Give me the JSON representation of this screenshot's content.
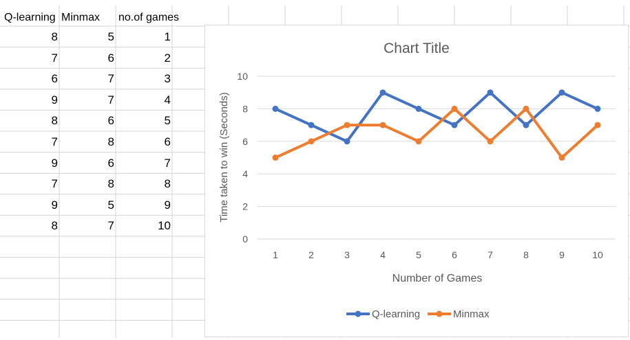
{
  "sheet": {
    "headers": [
      "Q-learning",
      "Minmax",
      "no.of games"
    ],
    "rows": [
      [
        8,
        5,
        1
      ],
      [
        7,
        6,
        2
      ],
      [
        6,
        7,
        3
      ],
      [
        9,
        7,
        4
      ],
      [
        8,
        6,
        5
      ],
      [
        7,
        8,
        6
      ],
      [
        9,
        6,
        7
      ],
      [
        7,
        8,
        8
      ],
      [
        9,
        5,
        9
      ],
      [
        8,
        7,
        10
      ]
    ]
  },
  "chart_data": {
    "type": "line",
    "title": "Chart Title",
    "xlabel": "Number of Games",
    "ylabel": "Time taken to win (Seconds)",
    "categories": [
      "1",
      "2",
      "3",
      "4",
      "5",
      "6",
      "7",
      "8",
      "9",
      "10"
    ],
    "ylim": [
      0,
      10
    ],
    "yticks": [
      "0",
      "2",
      "4",
      "6",
      "8",
      "10"
    ],
    "grid": true,
    "legend": "bottom",
    "series": [
      {
        "name": "Q-learning",
        "color": "#4472C4",
        "values": [
          8,
          7,
          6,
          9,
          8,
          7,
          9,
          7,
          9,
          8
        ]
      },
      {
        "name": "Minmax",
        "color": "#ED7D31",
        "values": [
          5,
          6,
          7,
          7,
          6,
          8,
          6,
          8,
          5,
          7
        ]
      }
    ]
  }
}
